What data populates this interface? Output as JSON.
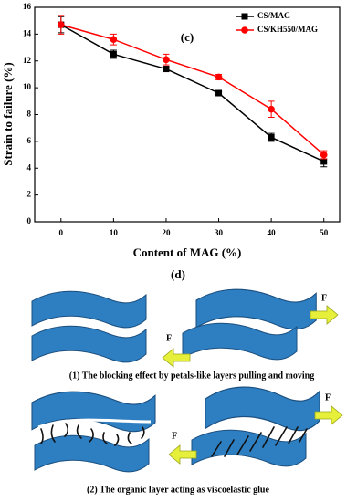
{
  "chart_data": {
    "type": "line",
    "annotation": "(c)",
    "x_label": "Content of MAG (%)",
    "y_label": "Strain to failure (%)",
    "x": [
      0,
      10,
      20,
      30,
      40,
      50
    ],
    "xlim": [
      -5,
      53
    ],
    "xticks": [
      0,
      10,
      20,
      30,
      40,
      50
    ],
    "ylim": [
      0,
      16
    ],
    "yticks": [
      0,
      2,
      4,
      6,
      8,
      10,
      12,
      14,
      16
    ],
    "legend": "upper right",
    "series": [
      {
        "name": "CS/MAG",
        "color": "#000000",
        "marker": "square",
        "values": [
          14.7,
          12.5,
          11.4,
          9.6,
          6.3,
          4.5
        ],
        "errors": [
          0.6,
          0.3,
          0.2,
          0.1,
          0.3,
          0.4
        ]
      },
      {
        "name": "CS/KH550/MAG",
        "color": "#ff0000",
        "marker": "circle",
        "values": [
          14.7,
          13.6,
          12.1,
          10.8,
          8.4,
          5.0
        ],
        "errors": [
          0.7,
          0.4,
          0.4,
          0.2,
          0.6,
          0.3
        ]
      }
    ]
  },
  "diagram": {
    "panel_label": "(d)",
    "captions": [
      "(1) The blocking effect by petals-like layers pulling and moving",
      "(2) The organic layer acting as viscoelastic glue"
    ],
    "force_labels": [
      "F",
      "F",
      "F",
      "F"
    ]
  }
}
